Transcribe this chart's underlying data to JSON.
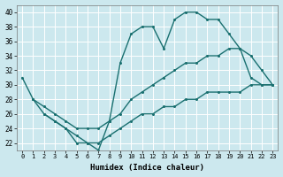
{
  "xlabel": "Humidex (Indice chaleur)",
  "bg_color": "#cce8ee",
  "grid_color": "#ffffff",
  "line_color": "#1a7070",
  "xlim": [
    -0.5,
    23.5
  ],
  "ylim": [
    21,
    41
  ],
  "xticks": [
    0,
    1,
    2,
    3,
    4,
    5,
    6,
    7,
    8,
    9,
    10,
    11,
    12,
    13,
    14,
    15,
    16,
    17,
    18,
    19,
    20,
    21,
    22,
    23
  ],
  "yticks": [
    22,
    24,
    26,
    28,
    30,
    32,
    34,
    36,
    38,
    40
  ],
  "line1_x": [
    0,
    1,
    2,
    3,
    4,
    5,
    6,
    7,
    8,
    9,
    10,
    11,
    12,
    13,
    14,
    15,
    16,
    17,
    18,
    19,
    20,
    21,
    22,
    23
  ],
  "line1_y": [
    31,
    28,
    26,
    25,
    24,
    22,
    22,
    21,
    25,
    33,
    37,
    38,
    38,
    35,
    39,
    40,
    40,
    39,
    39,
    37,
    35,
    31,
    30,
    30
  ],
  "line2_x": [
    1,
    2,
    3,
    4,
    5,
    6,
    7,
    8,
    9,
    10,
    11,
    12,
    13,
    14,
    15,
    16,
    17,
    18,
    19,
    20,
    21,
    22,
    23
  ],
  "line2_y": [
    28,
    27,
    26,
    25,
    24,
    24,
    24,
    25,
    26,
    28,
    29,
    30,
    31,
    32,
    33,
    33,
    34,
    34,
    35,
    35,
    34,
    32,
    30
  ],
  "line3_x": [
    2,
    3,
    4,
    5,
    6,
    7,
    8,
    9,
    10,
    11,
    12,
    13,
    14,
    15,
    16,
    17,
    18,
    19,
    20,
    21,
    22,
    23
  ],
  "line3_y": [
    26,
    25,
    24,
    23,
    22,
    22,
    23,
    24,
    25,
    26,
    26,
    27,
    27,
    28,
    28,
    29,
    29,
    29,
    29,
    30,
    30,
    30
  ]
}
